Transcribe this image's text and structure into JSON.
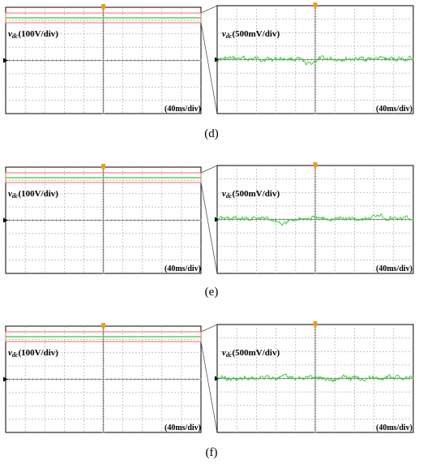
{
  "panels": [
    {
      "caption": "(d)",
      "left_label": {
        "var": "v",
        "sub": "dc",
        "unit": "(100V/div)"
      },
      "right_label": {
        "var": "v",
        "sub": "dc",
        "unit": "(500mV/div)"
      },
      "left_timebase": "(40ms/div)",
      "right_timebase": "(40ms/div)"
    },
    {
      "caption": "(e)",
      "left_label": {
        "var": "v",
        "sub": "dc",
        "unit": "(100V/div)"
      },
      "right_label": {
        "var": "v",
        "sub": "dc",
        "unit": "(500mV/div)"
      },
      "left_timebase": "(40ms/div)",
      "right_timebase": "(40ms/div)"
    },
    {
      "caption": "(f)",
      "left_label": {
        "var": "v",
        "sub": "dc",
        "unit": "(100V/div)"
      },
      "right_label": {
        "var": "v",
        "sub": "dc",
        "unit": "(500mV/div)"
      },
      "left_timebase": "(40ms/div)",
      "right_timebase": "(40ms/div)"
    }
  ],
  "colors": {
    "trace": "#33cc33",
    "zoom_box": "#ff6666",
    "grid": "#b0b0b0",
    "trigger": "#e8a020",
    "frame": "#000000"
  }
}
